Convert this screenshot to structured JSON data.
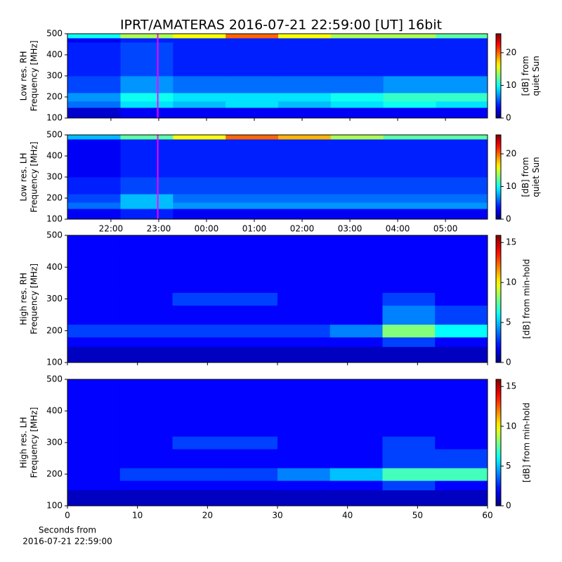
{
  "chart_data": [
    {
      "type": "heatmap",
      "title": "IPRT/AMATERAS 2016-07-21 22:59:00 [UT]   16bit",
      "ylabel": [
        "Low res. RH",
        "Frequency [MHz]"
      ],
      "colorbar_label": [
        "[dB] from",
        "quiet Sun"
      ],
      "xlim": [
        21.09,
        29.88
      ],
      "ylim": [
        100,
        500
      ],
      "yticks": [
        100,
        200,
        300,
        400,
        500
      ],
      "xticks": [
        22,
        23,
        24,
        25,
        26,
        27,
        28,
        29
      ],
      "xtick_labels": false,
      "clim": [
        0,
        25.8
      ],
      "cticks": [
        0,
        10,
        20
      ],
      "x": [
        21.09,
        22.2,
        23.3,
        24.4,
        25.5,
        26.6,
        27.7,
        28.8,
        29.88
      ],
      "y": [
        100,
        150,
        180,
        220,
        300,
        460,
        480,
        500
      ],
      "z": [
        [
          2,
          3,
          3,
          3,
          3,
          3,
          3,
          3
        ],
        [
          6,
          9,
          8,
          9,
          8,
          9,
          10,
          9
        ],
        [
          7,
          10,
          9,
          9,
          9,
          10,
          11,
          11
        ],
        [
          5,
          7,
          6,
          6,
          6,
          6,
          7,
          7
        ],
        [
          4,
          5,
          4,
          4,
          4,
          4,
          4,
          4
        ],
        [
          3,
          4,
          4,
          4,
          4,
          4,
          4,
          4
        ],
        [
          10,
          14,
          16,
          20,
          16,
          14,
          14,
          12
        ]
      ],
      "marker_x": 22.98,
      "marker_color": "#ff00ff"
    },
    {
      "type": "heatmap",
      "ylabel": [
        "Low res. LH",
        "Frequency [MHz]"
      ],
      "colorbar_label": [
        "[dB] from",
        "quiet Sun"
      ],
      "xlim": [
        21.09,
        29.88
      ],
      "ylim": [
        100,
        500
      ],
      "yticks": [
        100,
        200,
        300,
        400,
        500
      ],
      "xticks": [
        {
          "value": 22,
          "label": "22:00"
        },
        {
          "value": 23,
          "label": "23:00"
        },
        {
          "value": 24,
          "label": "00:00"
        },
        {
          "value": 25,
          "label": "01:00"
        },
        {
          "value": 26,
          "label": "02:00"
        },
        {
          "value": 27,
          "label": "03:00"
        },
        {
          "value": 28,
          "label": "04:00"
        },
        {
          "value": 29,
          "label": "05:00"
        }
      ],
      "clim": [
        0,
        25.8
      ],
      "cticks": [
        0,
        10,
        20
      ],
      "x": [
        21.09,
        22.2,
        23.3,
        24.4,
        25.5,
        26.6,
        27.7,
        28.8,
        29.88
      ],
      "y": [
        100,
        150,
        180,
        220,
        300,
        460,
        480,
        500
      ],
      "z": [
        [
          3,
          4,
          3,
          3,
          3,
          3,
          3,
          3
        ],
        [
          6,
          8,
          7,
          7,
          7,
          7,
          7,
          7
        ],
        [
          5,
          8,
          6,
          6,
          6,
          6,
          6,
          6
        ],
        [
          4,
          5,
          5,
          5,
          5,
          5,
          5,
          5
        ],
        [
          3,
          4,
          4,
          4,
          4,
          4,
          4,
          4
        ],
        [
          3,
          4,
          4,
          4,
          4,
          4,
          4,
          4
        ],
        [
          8,
          12,
          16,
          20,
          18,
          14,
          12,
          12
        ]
      ],
      "marker_x": 22.98,
      "marker_color": "#ff00ff"
    },
    {
      "type": "heatmap",
      "ylabel": [
        "High res. RH",
        "Frequency [MHz]"
      ],
      "colorbar_label": [
        "[dB] from min-hold"
      ],
      "xlim": [
        0,
        60
      ],
      "ylim": [
        100,
        500
      ],
      "yticks": [
        100,
        200,
        300,
        400,
        500
      ],
      "xticks": [
        0,
        10,
        20,
        30,
        40,
        50,
        60
      ],
      "xtick_labels": false,
      "clim": [
        0,
        15.9
      ],
      "cticks": [
        0,
        5,
        10,
        15
      ],
      "x": [
        0,
        7.5,
        15,
        22.5,
        30,
        37.5,
        45,
        52.5,
        60
      ],
      "y": [
        100,
        150,
        180,
        220,
        280,
        320,
        460,
        500
      ],
      "z": [
        [
          1,
          1,
          1,
          1,
          1,
          1,
          1,
          1
        ],
        [
          2,
          2,
          2,
          2,
          2,
          2,
          3,
          2
        ],
        [
          3,
          3,
          3,
          3,
          3,
          4,
          8,
          6
        ],
        [
          2,
          2,
          2,
          2,
          2,
          2,
          4,
          3
        ],
        [
          2,
          2,
          3,
          3,
          2,
          2,
          3,
          2
        ],
        [
          2,
          2,
          2,
          2,
          2,
          2,
          2,
          2
        ],
        [
          2,
          2,
          2,
          2,
          2,
          2,
          2,
          2
        ]
      ]
    },
    {
      "type": "heatmap",
      "ylabel": [
        "High res. LH",
        "Frequency [MHz]"
      ],
      "colorbar_label": [
        "[dB] from min-hold"
      ],
      "xlabel": [
        "Seconds from",
        "2016-07-21 22:59:00"
      ],
      "xlim": [
        0,
        60
      ],
      "ylim": [
        100,
        500
      ],
      "yticks": [
        100,
        200,
        300,
        400,
        500
      ],
      "xticks": [
        0,
        10,
        20,
        30,
        40,
        50,
        60
      ],
      "clim": [
        0,
        15.9
      ],
      "cticks": [
        0,
        5,
        10,
        15
      ],
      "x": [
        0,
        7.5,
        15,
        22.5,
        30,
        37.5,
        45,
        52.5,
        60
      ],
      "y": [
        100,
        150,
        180,
        220,
        280,
        320,
        460,
        500
      ],
      "z": [
        [
          1,
          1,
          1,
          1,
          1,
          1,
          1,
          1
        ],
        [
          2,
          2,
          2,
          2,
          2,
          2,
          3,
          2
        ],
        [
          2,
          3,
          3,
          3,
          4,
          5,
          7,
          7
        ],
        [
          2,
          2,
          2,
          2,
          2,
          2,
          3,
          3
        ],
        [
          2,
          2,
          3,
          3,
          2,
          2,
          3,
          2
        ],
        [
          2,
          2,
          2,
          2,
          2,
          2,
          2,
          2
        ],
        [
          2,
          2,
          2,
          2,
          2,
          2,
          2,
          2
        ]
      ]
    }
  ]
}
